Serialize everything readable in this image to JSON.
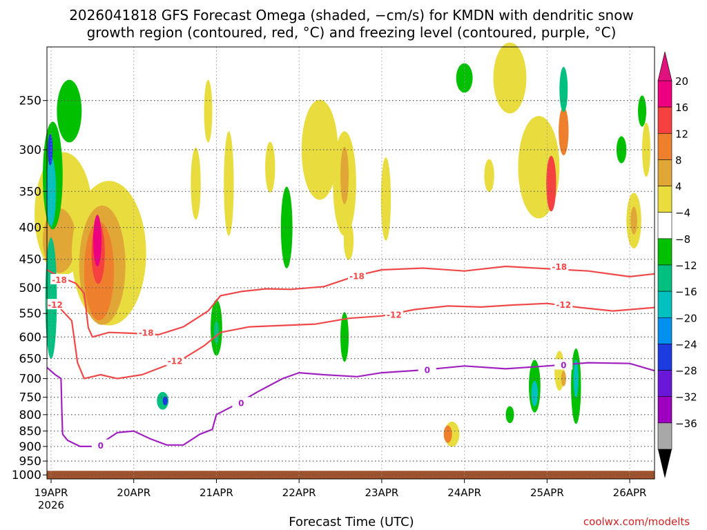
{
  "chart_data": {
    "type": "heatmap",
    "title_line1": "2026041818 GFS Forecast Omega (shaded, −cm/s) for KMDN with dendritic snow",
    "title_line2": "growth region (contoured, red, °C) and freezing level (contoured, purple, °C)",
    "xlabel": "Forecast Time (UTC)",
    "credit": "coolwx.com/modelts",
    "year_label": "2026",
    "x_range_days": [
      -0.05,
      7.3
    ],
    "x_ticks": [
      {
        "day": 0,
        "label": "19APR"
      },
      {
        "day": 1,
        "label": "20APR"
      },
      {
        "day": 2,
        "label": "21APR"
      },
      {
        "day": 3,
        "label": "22APR"
      },
      {
        "day": 4,
        "label": "23APR"
      },
      {
        "day": 5,
        "label": "24APR"
      },
      {
        "day": 6,
        "label": "25APR"
      },
      {
        "day": 7,
        "label": "26APR"
      }
    ],
    "y_scale": "log-pressure",
    "y_range_hpa": [
      205,
      1015
    ],
    "y_ticks": [
      250,
      300,
      350,
      400,
      450,
      500,
      550,
      600,
      650,
      700,
      750,
      800,
      850,
      900,
      950,
      1000
    ],
    "surface_pressure_hpa": 985,
    "colorbar": {
      "ticks": [
        "20",
        "16",
        "12",
        "8",
        "4",
        "−4",
        "−8",
        "−12",
        "−16",
        "−20",
        "−24",
        "−28",
        "−32",
        "−36"
      ],
      "colors": [
        "#ec0080",
        "#f5413f",
        "#ee7f2c",
        "#e0a736",
        "#e8dc3e",
        "#ffffff",
        "#00c000",
        "#00c080",
        "#00c0c0",
        "#0090f0",
        "#1c3ce0",
        "#6a18d8",
        "#9e00c0",
        "#a8a8a8"
      ],
      "top_arrow_color": "#e0127e",
      "bottom_arrow_color": "#000000"
    },
    "omega_blobs": [
      {
        "d": 0.15,
        "p": 380,
        "rd": 0.35,
        "rp": 170,
        "color": "#e8dc3e"
      },
      {
        "d": 0.1,
        "p": 420,
        "rd": 0.2,
        "rp": 100,
        "color": "#e0a736"
      },
      {
        "d": 0.7,
        "p": 440,
        "rd": 0.45,
        "rp": 230,
        "color": "#e8dc3e"
      },
      {
        "d": 0.62,
        "p": 460,
        "rd": 0.28,
        "rp": 200,
        "color": "#e0a736"
      },
      {
        "d": 0.58,
        "p": 470,
        "rd": 0.18,
        "rp": 170,
        "color": "#ee7f2c"
      },
      {
        "d": 0.57,
        "p": 440,
        "rd": 0.08,
        "rp": 100,
        "color": "#f5413f"
      },
      {
        "d": 0.56,
        "p": 420,
        "rd": 0.05,
        "rp": 80,
        "color": "#ec0080"
      },
      {
        "d": 0.02,
        "p": 330,
        "rd": 0.12,
        "rp": 130,
        "color": "#00c000"
      },
      {
        "d": 0.0,
        "p": 520,
        "rd": 0.07,
        "rp": 230,
        "color": "#00c080"
      },
      {
        "d": 0.0,
        "p": 350,
        "rd": 0.06,
        "rp": 90,
        "color": "#00c0c0"
      },
      {
        "d": -0.01,
        "p": 300,
        "rd": 0.03,
        "rp": 35,
        "color": "#1c3ce0"
      },
      {
        "d": 0.22,
        "p": 260,
        "rd": 0.15,
        "rp": 60,
        "color": "#00c000"
      },
      {
        "d": 1.35,
        "p": 760,
        "rd": 0.07,
        "rp": 50,
        "color": "#00c080"
      },
      {
        "d": 1.38,
        "p": 760,
        "rd": 0.03,
        "rp": 25,
        "color": "#1c3ce0"
      },
      {
        "d": 1.75,
        "p": 340,
        "rd": 0.06,
        "rp": 90,
        "color": "#e8dc3e"
      },
      {
        "d": 1.9,
        "p": 260,
        "rd": 0.05,
        "rp": 60,
        "color": "#e8dc3e"
      },
      {
        "d": 2.0,
        "p": 580,
        "rd": 0.07,
        "rp": 120,
        "color": "#00c000"
      },
      {
        "d": 2.0,
        "p": 590,
        "rd": 0.03,
        "rp": 50,
        "color": "#00c080"
      },
      {
        "d": 2.15,
        "p": 340,
        "rd": 0.06,
        "rp": 130,
        "color": "#e8dc3e"
      },
      {
        "d": 2.65,
        "p": 320,
        "rd": 0.06,
        "rp": 60,
        "color": "#e8dc3e"
      },
      {
        "d": 2.85,
        "p": 400,
        "rd": 0.07,
        "rp": 120,
        "color": "#00c000"
      },
      {
        "d": 3.25,
        "p": 300,
        "rd": 0.22,
        "rp": 110,
        "color": "#e8dc3e"
      },
      {
        "d": 3.55,
        "p": 340,
        "rd": 0.14,
        "rp": 130,
        "color": "#e8dc3e"
      },
      {
        "d": 3.55,
        "p": 330,
        "rd": 0.05,
        "rp": 70,
        "color": "#e0a736"
      },
      {
        "d": 3.55,
        "p": 600,
        "rd": 0.05,
        "rp": 110,
        "color": "#00c000"
      },
      {
        "d": 3.6,
        "p": 420,
        "rd": 0.06,
        "rp": 60,
        "color": "#e8dc3e"
      },
      {
        "d": 4.05,
        "p": 360,
        "rd": 0.06,
        "rp": 110,
        "color": "#e8dc3e"
      },
      {
        "d": 4.85,
        "p": 860,
        "rd": 0.09,
        "rp": 80,
        "color": "#e8dc3e"
      },
      {
        "d": 4.8,
        "p": 860,
        "rd": 0.05,
        "rp": 55,
        "color": "#ee7f2c"
      },
      {
        "d": 5.0,
        "p": 230,
        "rd": 0.1,
        "rp": 25,
        "color": "#00c000"
      },
      {
        "d": 5.3,
        "p": 330,
        "rd": 0.06,
        "rp": 40,
        "color": "#e8dc3e"
      },
      {
        "d": 5.55,
        "p": 230,
        "rd": 0.2,
        "rp": 60,
        "color": "#e8dc3e"
      },
      {
        "d": 5.55,
        "p": 800,
        "rd": 0.05,
        "rp": 50,
        "color": "#00c000"
      },
      {
        "d": 5.9,
        "p": 320,
        "rd": 0.25,
        "rp": 120,
        "color": "#e8dc3e"
      },
      {
        "d": 6.2,
        "p": 280,
        "rd": 0.06,
        "rp": 50,
        "color": "#ee7f2c"
      },
      {
        "d": 6.05,
        "p": 340,
        "rd": 0.06,
        "rp": 70,
        "color": "#f5413f"
      },
      {
        "d": 5.85,
        "p": 720,
        "rd": 0.07,
        "rp": 140,
        "color": "#00c000"
      },
      {
        "d": 5.85,
        "p": 740,
        "rd": 0.04,
        "rp": 70,
        "color": "#00c0c0"
      },
      {
        "d": 6.15,
        "p": 680,
        "rd": 0.06,
        "rp": 100,
        "color": "#e8dc3e"
      },
      {
        "d": 6.2,
        "p": 700,
        "rd": 0.03,
        "rp": 40,
        "color": "#e0a736"
      },
      {
        "d": 6.35,
        "p": 720,
        "rd": 0.06,
        "rp": 200,
        "color": "#00c000"
      },
      {
        "d": 6.35,
        "p": 700,
        "rd": 0.03,
        "rp": 100,
        "color": "#00c0c0"
      },
      {
        "d": 6.2,
        "p": 240,
        "rd": 0.05,
        "rp": 40,
        "color": "#00c080"
      },
      {
        "d": 6.9,
        "p": 300,
        "rd": 0.06,
        "rp": 30,
        "color": "#00c000"
      },
      {
        "d": 7.05,
        "p": 390,
        "rd": 0.09,
        "rp": 80,
        "color": "#e8dc3e"
      },
      {
        "d": 7.05,
        "p": 390,
        "rd": 0.04,
        "rp": 40,
        "color": "#e0a736"
      },
      {
        "d": 7.15,
        "p": 260,
        "rd": 0.05,
        "rp": 30,
        "color": "#00c000"
      },
      {
        "d": 7.2,
        "p": 300,
        "rd": 0.05,
        "rp": 60,
        "color": "#e8dc3e"
      }
    ],
    "dendritic_18C_contour": {
      "value": -18,
      "color": "#f04848",
      "points": [
        [
          -0.05,
          468
        ],
        [
          0.1,
          480
        ],
        [
          0.3,
          492
        ],
        [
          0.4,
          510
        ],
        [
          0.45,
          580
        ],
        [
          0.5,
          600
        ],
        [
          0.7,
          590
        ],
        [
          1.0,
          592
        ],
        [
          1.3,
          595
        ],
        [
          1.6,
          578
        ],
        [
          1.9,
          545
        ],
        [
          2.05,
          515
        ],
        [
          2.3,
          507
        ],
        [
          2.6,
          502
        ],
        [
          2.9,
          503
        ],
        [
          3.3,
          498
        ],
        [
          3.7,
          478
        ],
        [
          4.0,
          468
        ],
        [
          4.5,
          465
        ],
        [
          5.0,
          470
        ],
        [
          5.5,
          462
        ],
        [
          6.0,
          466
        ],
        [
          6.5,
          470
        ],
        [
          7.0,
          480
        ],
        [
          7.3,
          475
        ]
      ]
    },
    "dendritic_12C_contour": {
      "value": -12,
      "color": "#f04848",
      "points": [
        [
          -0.05,
          530
        ],
        [
          0.1,
          538
        ],
        [
          0.25,
          565
        ],
        [
          0.32,
          660
        ],
        [
          0.4,
          700
        ],
        [
          0.6,
          690
        ],
        [
          0.8,
          700
        ],
        [
          1.1,
          690
        ],
        [
          1.35,
          670
        ],
        [
          1.6,
          650
        ],
        [
          1.85,
          620
        ],
        [
          2.05,
          590
        ],
        [
          2.4,
          578
        ],
        [
          2.8,
          575
        ],
        [
          3.2,
          572
        ],
        [
          3.6,
          560
        ],
        [
          4.0,
          555
        ],
        [
          4.4,
          542
        ],
        [
          4.8,
          535
        ],
        [
          5.2,
          537
        ],
        [
          5.6,
          533
        ],
        [
          6.0,
          530
        ],
        [
          6.4,
          538
        ],
        [
          6.8,
          545
        ],
        [
          7.3,
          538
        ]
      ]
    },
    "freezing_level_contour": {
      "value": 0,
      "color": "#a020c0",
      "points": [
        [
          -0.05,
          672
        ],
        [
          0.05,
          690
        ],
        [
          0.12,
          700
        ],
        [
          0.13,
          790
        ],
        [
          0.14,
          860
        ],
        [
          0.2,
          880
        ],
        [
          0.35,
          900
        ],
        [
          0.55,
          900
        ],
        [
          0.8,
          855
        ],
        [
          1.0,
          850
        ],
        [
          1.2,
          875
        ],
        [
          1.4,
          895
        ],
        [
          1.6,
          895
        ],
        [
          1.8,
          860
        ],
        [
          1.95,
          845
        ],
        [
          2.0,
          800
        ],
        [
          2.2,
          775
        ],
        [
          2.5,
          735
        ],
        [
          2.8,
          700
        ],
        [
          3.0,
          685
        ],
        [
          3.3,
          690
        ],
        [
          3.7,
          695
        ],
        [
          4.0,
          685
        ],
        [
          4.5,
          678
        ],
        [
          5.0,
          668
        ],
        [
          5.5,
          675
        ],
        [
          6.0,
          668
        ],
        [
          6.5,
          660
        ],
        [
          7.0,
          662
        ],
        [
          7.3,
          680
        ]
      ]
    },
    "contour_labels": [
      {
        "line": "dendritic_18C_contour",
        "text": "-18",
        "d": 0.1,
        "p": 485
      },
      {
        "line": "dendritic_18C_contour",
        "text": "-18",
        "d": 1.15,
        "p": 590
      },
      {
        "line": "dendritic_18C_contour",
        "text": "-18",
        "d": 3.7,
        "p": 478
      },
      {
        "line": "dendritic_18C_contour",
        "text": "-18",
        "d": 6.15,
        "p": 462
      },
      {
        "line": "dendritic_12C_contour",
        "text": "-12",
        "d": 0.05,
        "p": 532
      },
      {
        "line": "dendritic_12C_contour",
        "text": "-12",
        "d": 1.5,
        "p": 655
      },
      {
        "line": "dendritic_12C_contour",
        "text": "-12",
        "d": 4.15,
        "p": 552
      },
      {
        "line": "dendritic_12C_contour",
        "text": "-12",
        "d": 6.2,
        "p": 532
      },
      {
        "line": "freezing_level_contour",
        "text": "0",
        "d": 0.6,
        "p": 895
      },
      {
        "line": "freezing_level_contour",
        "text": "0",
        "d": 2.3,
        "p": 765
      },
      {
        "line": "freezing_level_contour",
        "text": "0",
        "d": 4.55,
        "p": 677
      },
      {
        "line": "freezing_level_contour",
        "text": "0",
        "d": 6.2,
        "p": 665
      }
    ]
  }
}
